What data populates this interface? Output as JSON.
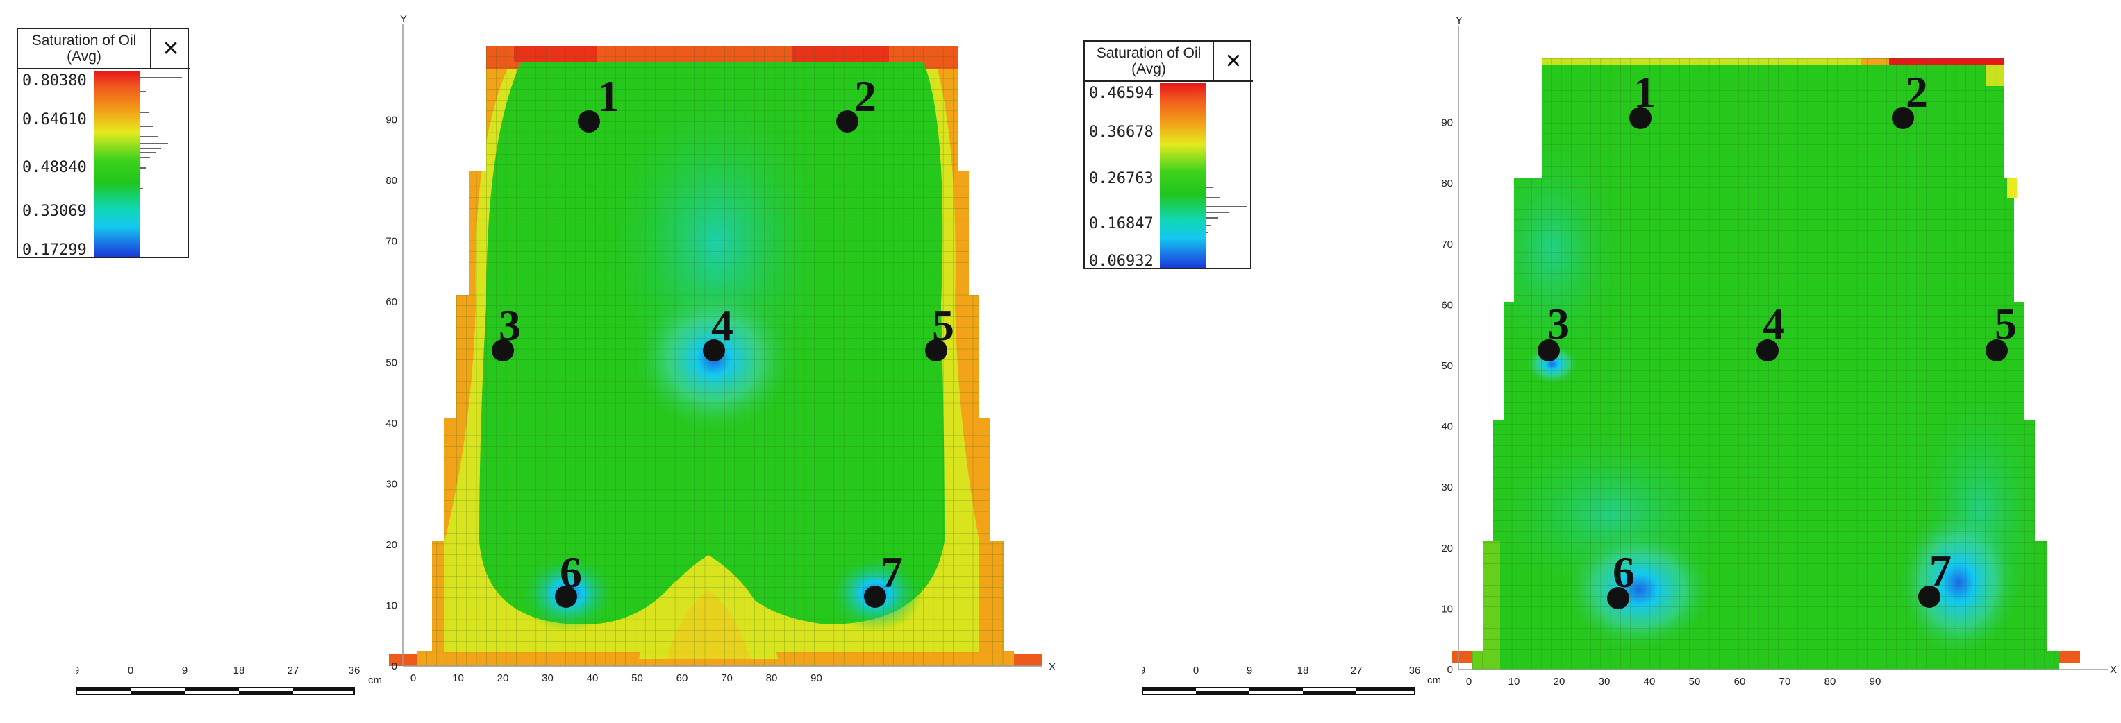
{
  "legends": [
    {
      "title_line1": "Saturation of Oil",
      "title_line2": "(Avg)",
      "close": "✕",
      "ticks": [
        "0.80380",
        "0.64610",
        "0.48840",
        "0.33069",
        "0.17299"
      ],
      "icon": "close-icon"
    },
    {
      "title_line1": "Saturation of Oil",
      "title_line2": "(Avg)",
      "close": "✕",
      "ticks": [
        "0.46594",
        "0.36678",
        "0.26763",
        "0.16847",
        "0.06932"
      ],
      "icon": "close-icon"
    }
  ],
  "scalebar": {
    "labels": [
      "9",
      "0",
      "9",
      "18",
      "27",
      "36"
    ],
    "unit": "cm"
  },
  "axes": {
    "x_label": "X",
    "y_label": "Y",
    "x_ticks": [
      "0",
      "10",
      "20",
      "30",
      "40",
      "50",
      "60",
      "70",
      "80",
      "90"
    ],
    "y_ticks": [
      "0",
      "10",
      "20",
      "30",
      "40",
      "50",
      "60",
      "70",
      "80",
      "90"
    ]
  },
  "wells": [
    "1",
    "2",
    "3",
    "4",
    "5",
    "6",
    "7"
  ],
  "colors": {
    "red": "#e8171a",
    "orange": "#f2a317",
    "yellow": "#e6ea1e",
    "green": "#26c81c",
    "cyan": "#14c8f0",
    "blue": "#1a6ae8"
  }
}
